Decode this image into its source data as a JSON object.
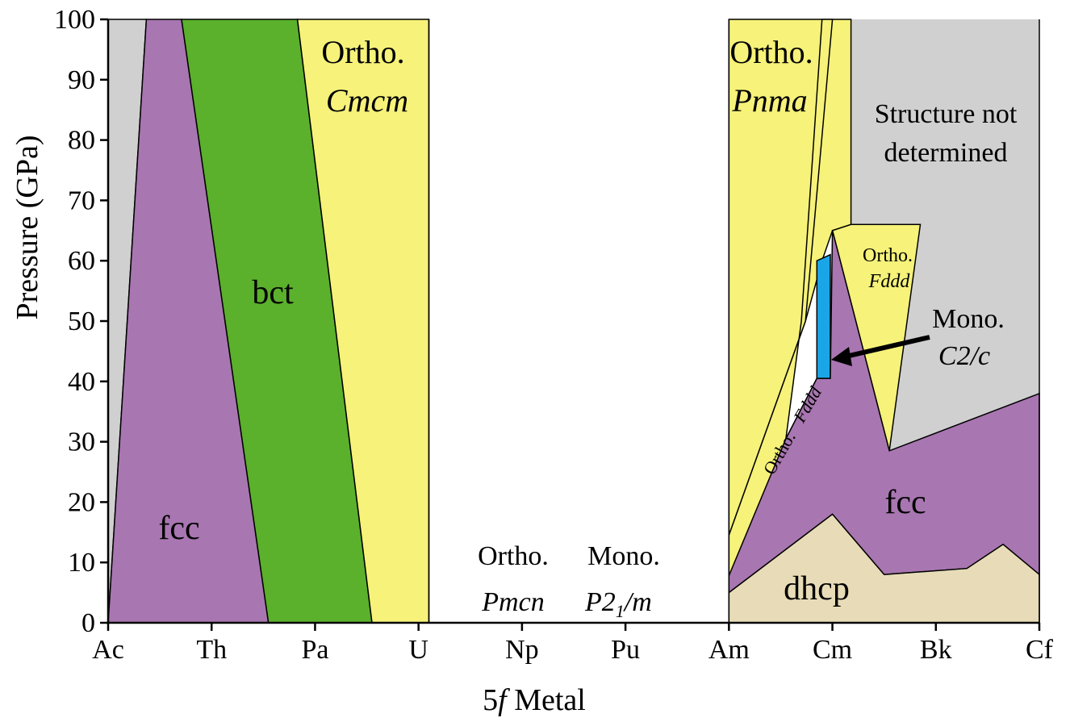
{
  "chart_data": {
    "type": "area",
    "xlabel_prefix": "5",
    "xlabel_italic": "f",
    "xlabel_suffix": " Metal",
    "ylabel": "Pressure (GPa)",
    "categories": [
      "Ac",
      "Th",
      "Pa",
      "U",
      "Np",
      "Pu",
      "Am",
      "Cm",
      "Bk",
      "Cf"
    ],
    "ylim": [
      0,
      100
    ],
    "yticks": [
      "0",
      "10",
      "20",
      "30",
      "40",
      "50",
      "60",
      "70",
      "80",
      "90",
      "100"
    ],
    "colors": {
      "gray": "#d0d0d0",
      "purple": "#a876b0",
      "green": "#5bb02c",
      "yellow": "#f6f27a",
      "blue": "#1aa6e6",
      "tan": "#e8dcb8",
      "white": "#ffffff"
    },
    "labels": {
      "fcc_left": "fcc",
      "bct": "bct",
      "cmcm_top": "Ortho.",
      "cmcm_bottom": "Cmcm",
      "pmcn_top": "Ortho.",
      "pmcn_bottom": "Pmcn",
      "p21m_top": "Mono.",
      "p21m_bottom_a": "P2",
      "p21m_bottom_sub": "1",
      "p21m_bottom_b": "/m",
      "pnma_top": "Ortho.",
      "pnma_bottom": "Pnma",
      "undetermined_line1": "Structure not",
      "undetermined_line2": "determined",
      "fddd_right_top": "Ortho.",
      "fddd_right_bottom": "Fddd",
      "fddd_diag_a": "Ortho.",
      "fddd_diag_b": "Fddd",
      "c2c_top": "Mono.",
      "c2c_bottom": "C2/c",
      "fcc_right": "fcc",
      "dhcp": "dhcp"
    }
  }
}
